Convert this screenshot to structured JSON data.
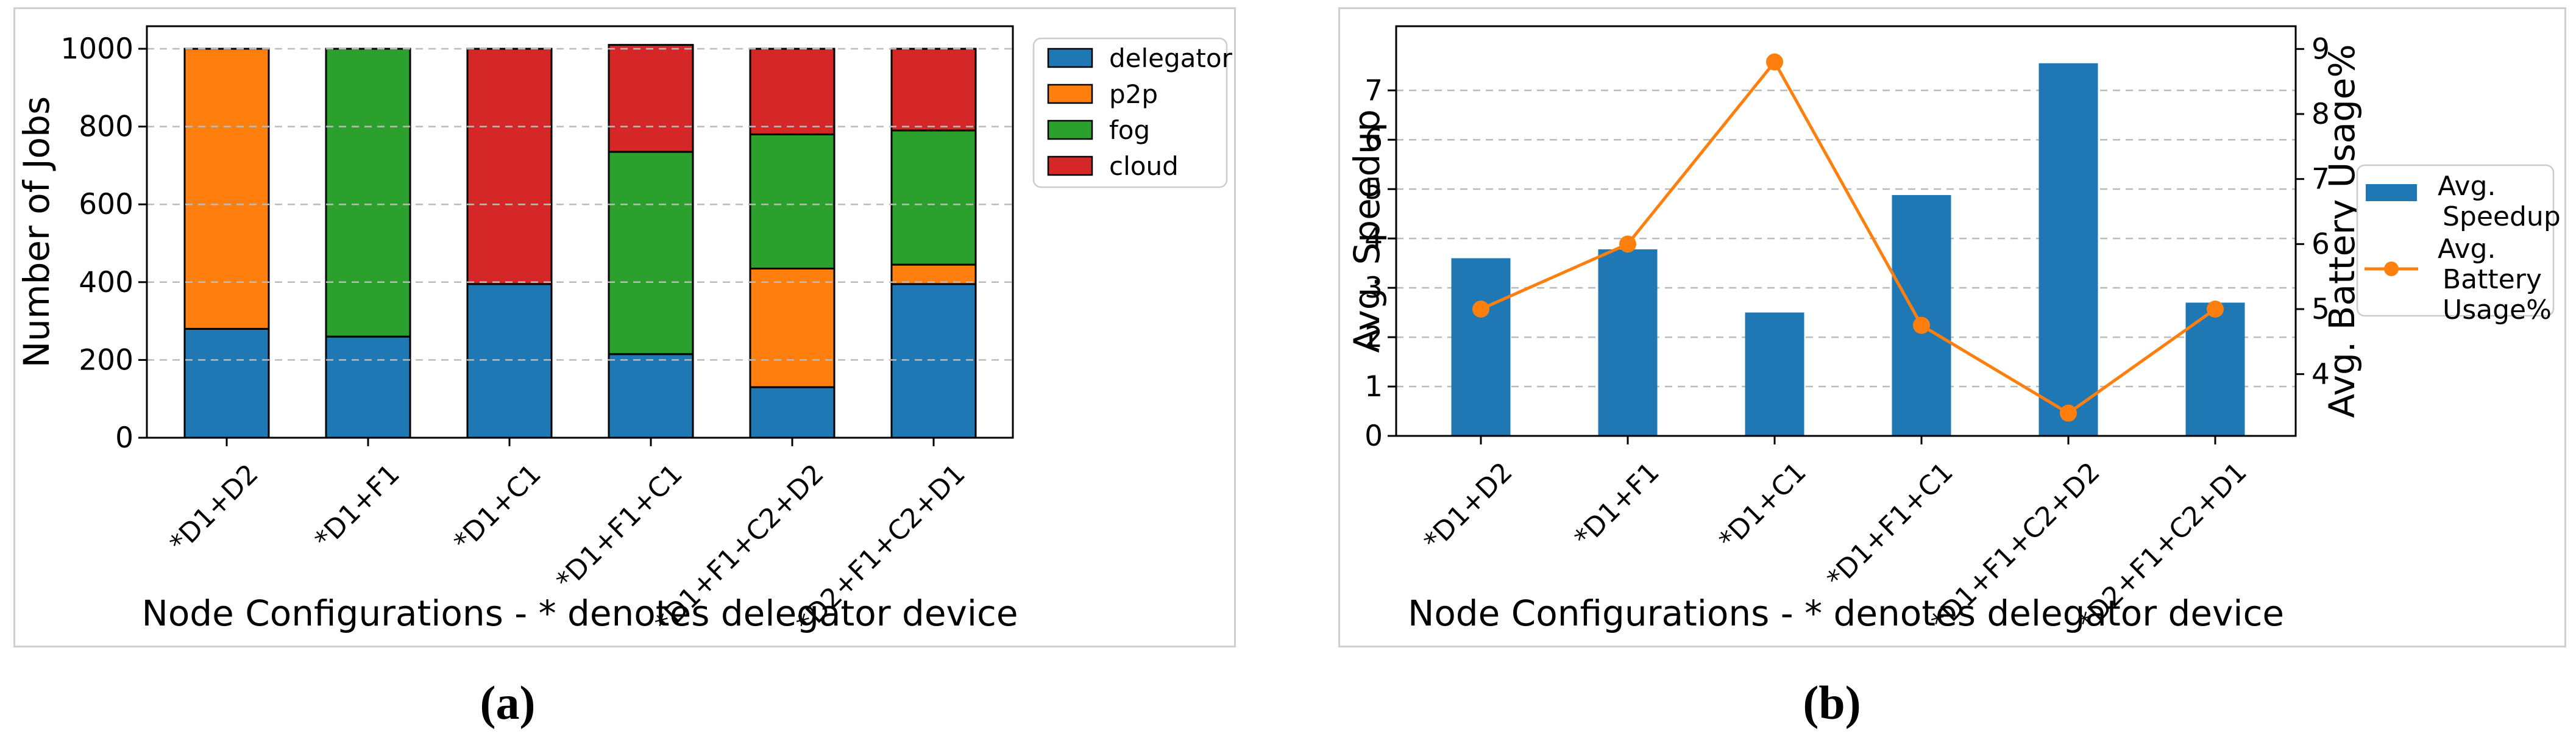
{
  "page": {
    "background": "#ffffff",
    "panel_border_color": "#cfcfcf"
  },
  "captions": {
    "a": "(a)",
    "b": "(b)"
  },
  "chart_data": [
    {
      "id": "a",
      "type": "bar",
      "stacked": true,
      "title": "",
      "xlabel": "Node Configurations - * denotes delegator device",
      "ylabel": "Number of Jobs",
      "categories": [
        "*D1+D2",
        "*D1+F1",
        "*D1+C1",
        "*D1+F1+C1",
        "*D1+F1+C2+D2",
        "*D2+F1+C2+D1"
      ],
      "series": [
        {
          "name": "delegator",
          "color": "#1f77b4",
          "values": [
            280,
            260,
            395,
            215,
            130,
            395
          ]
        },
        {
          "name": "p2p",
          "color": "#ff7f0e",
          "values": [
            720,
            0,
            0,
            0,
            305,
            50
          ]
        },
        {
          "name": "fog",
          "color": "#2ca02c",
          "values": [
            0,
            740,
            0,
            520,
            345,
            345
          ]
        },
        {
          "name": "cloud",
          "color": "#d62728",
          "values": [
            0,
            0,
            605,
            275,
            220,
            210
          ]
        }
      ],
      "ylim": [
        0,
        1058
      ],
      "yticks": [
        0,
        200,
        400,
        600,
        800,
        1000
      ],
      "grid": true,
      "grid_style": "dashed",
      "legend_position": "outside-top-right",
      "bar_edge_color": "#000000"
    },
    {
      "id": "b",
      "type": "bar+line",
      "title": "",
      "xlabel": "Node Configurations - * denotes delegator device",
      "ylabel_left": "Avg. Speedup",
      "ylabel_right": "Avg. Battery Usage%",
      "categories": [
        "*D1+D2",
        "*D1+F1",
        "*D1+C1",
        "*D1+F1+C1",
        "*D1+F1+C2+D2",
        "*D2+F1+C2+D1"
      ],
      "bar_series": {
        "name": "Avg. Speedup",
        "legend_lines": [
          "Avg.",
          "Speedup"
        ],
        "color": "#1f77b4",
        "axis": "left",
        "values": [
          3.6,
          3.78,
          2.5,
          4.88,
          7.55,
          2.7
        ]
      },
      "line_series": {
        "name": "Avg. Battery Usage%",
        "legend_lines": [
          "Avg.",
          "Battery",
          "Usage%"
        ],
        "color": "#ff7f0e",
        "axis": "right",
        "marker": "circle",
        "values": [
          5.0,
          6.0,
          8.8,
          4.75,
          3.4,
          5.0
        ]
      },
      "ylim_left": [
        0,
        8.3
      ],
      "yticks_left": [
        0,
        1,
        2,
        3,
        4,
        5,
        6,
        7
      ],
      "ylim_right": [
        3.05,
        9.35
      ],
      "yticks_right": [
        4,
        5,
        6,
        7,
        8,
        9
      ],
      "grid": true,
      "grid_style": "dashed",
      "legend_position": "outside-center-right"
    }
  ]
}
